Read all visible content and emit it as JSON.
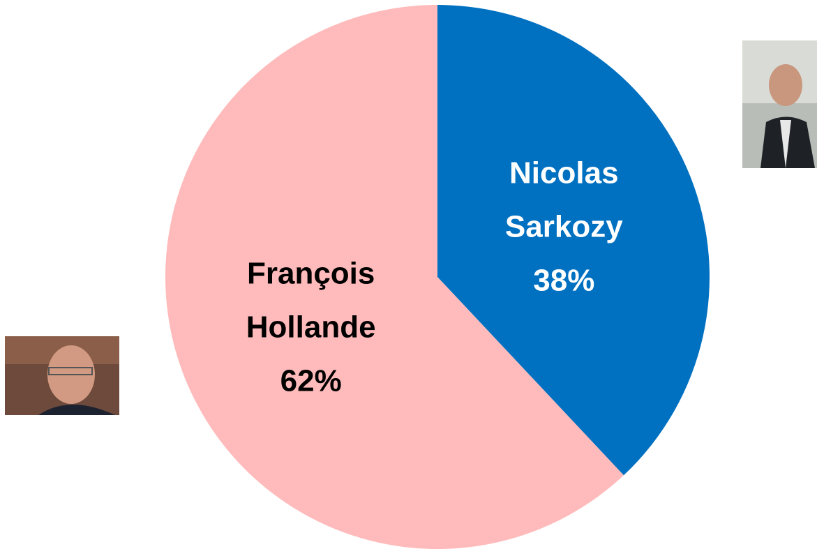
{
  "chart_data": {
    "type": "pie",
    "categories": [
      "Nicolas Sarkozy",
      "François Hollande"
    ],
    "values": [
      38,
      62
    ],
    "value_labels": [
      "38%",
      "62%"
    ],
    "colors": [
      "#0070c0",
      "#ffbbbb"
    ]
  }
}
